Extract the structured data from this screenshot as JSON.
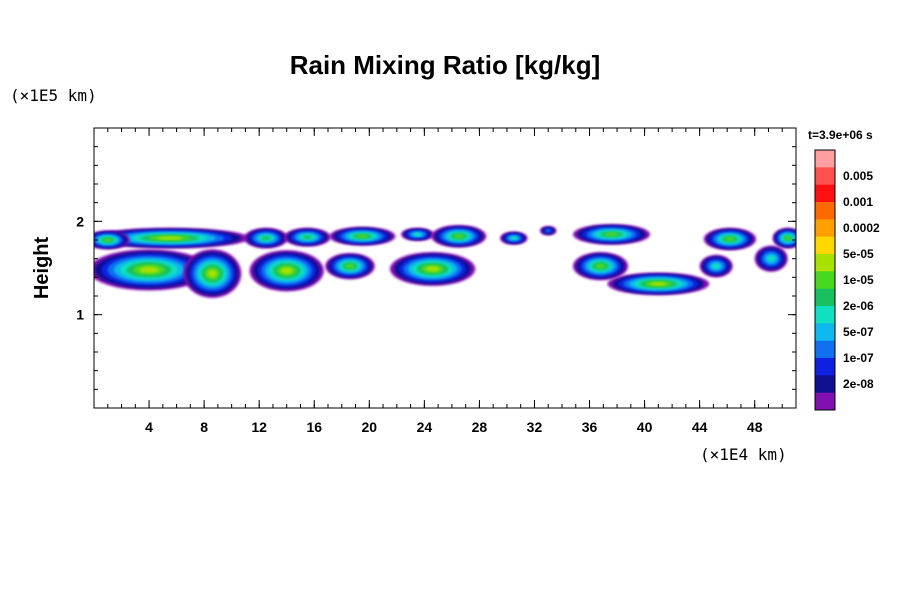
{
  "chart_data": {
    "type": "heatmap",
    "title": "Rain Mixing Ratio [kg/kg]",
    "ylabel": "Height",
    "xlabel": "",
    "x_unit": "(×1E4 km)",
    "y_unit": "(×1E5 km)",
    "time_label": "t=3.9e+06 s",
    "x_ticks": [
      4,
      8,
      12,
      16,
      20,
      24,
      28,
      32,
      36,
      40,
      44,
      48
    ],
    "y_ticks": [
      1,
      2
    ],
    "xlim": [
      0,
      51
    ],
    "ylim": [
      0,
      3
    ],
    "grid": false,
    "legend_position": "right",
    "colorbar": {
      "labels": [
        "0.005",
        "0.001",
        "0.0002",
        "5e-05",
        "1e-05",
        "2e-06",
        "5e-07",
        "1e-07",
        "2e-08"
      ],
      "colors": [
        "#ff9fa0",
        "#ff5050",
        "#ff1010",
        "#ff6a00",
        "#ffa000",
        "#ffd800",
        "#a8e000",
        "#48d820",
        "#18c060",
        "#10e0c0",
        "#10b8f0",
        "#1070f0",
        "#1020e0",
        "#101090",
        "#8010b0"
      ]
    },
    "regions": [
      {
        "x": [
          0,
          51
        ],
        "y": [
          1.5,
          2.0
        ],
        "max_level": "1e-05"
      },
      {
        "x": [
          0,
          11
        ],
        "y": [
          1.15,
          1.75
        ],
        "max_level": "1e-05"
      },
      {
        "x": [
          11,
          17
        ],
        "y": [
          1.2,
          1.7
        ],
        "max_level": "1e-05"
      },
      {
        "x": [
          17,
          22
        ],
        "y": [
          1.4,
          1.7
        ],
        "max_level": "2e-06"
      },
      {
        "x": [
          22,
          29
        ],
        "y": [
          1.2,
          1.7
        ],
        "max_level": "1e-05"
      },
      {
        "x": [
          34,
          45
        ],
        "y": [
          1.2,
          1.7
        ],
        "max_level": "1e-05"
      }
    ]
  }
}
